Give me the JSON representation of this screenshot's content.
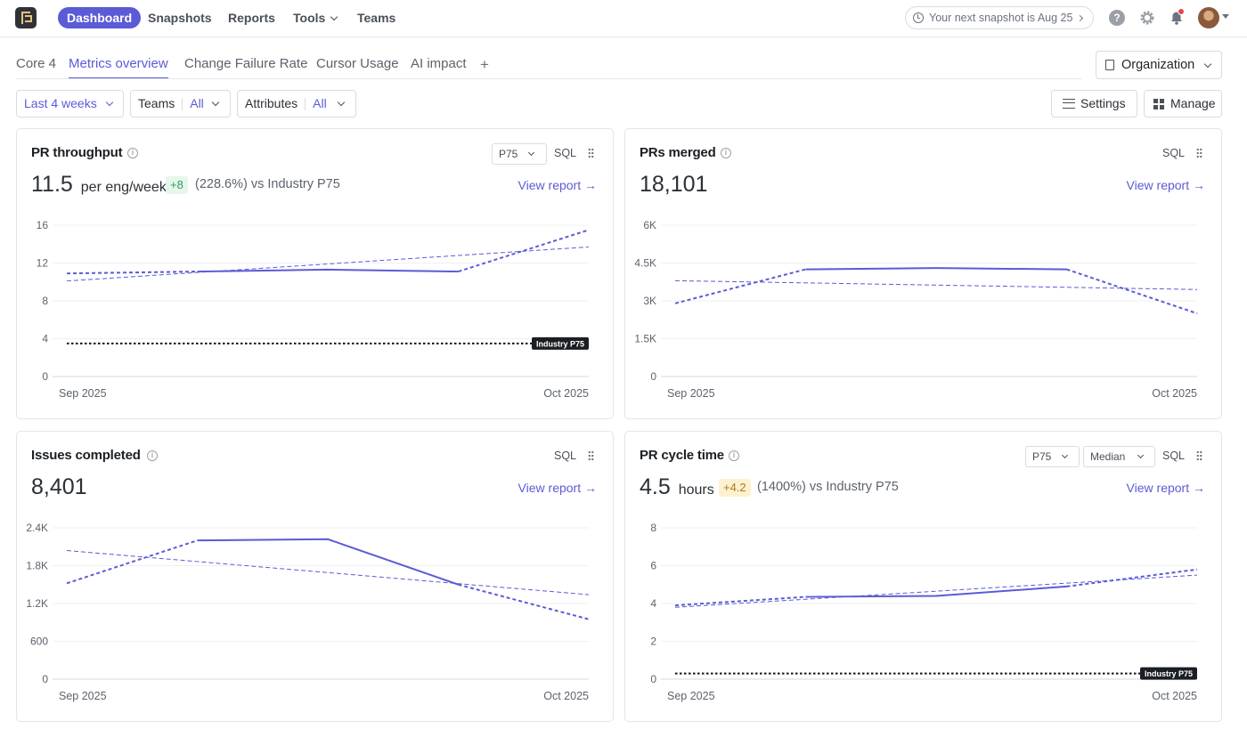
{
  "nav": {
    "items": [
      {
        "label": "Dashboard",
        "active": true
      },
      {
        "label": "Snapshots"
      },
      {
        "label": "Reports"
      },
      {
        "label": "Tools"
      },
      {
        "label": "Teams"
      }
    ],
    "snapshot_text": "Your next snapshot is Aug 25",
    "help_glyph": "?"
  },
  "tabs": [
    "Core 4",
    "Metrics overview",
    "Change Failure Rate",
    "Cursor Usage",
    "AI impact"
  ],
  "active_tab": "Metrics overview",
  "tab_add": "+",
  "organization_label": "Organization",
  "filters": {
    "date_range": "Last 4 weeks",
    "teams_label": "Teams",
    "teams_value": "All",
    "attributes_label": "Attributes",
    "attributes_value": "All"
  },
  "actions": {
    "settings": "Settings",
    "manage": "Manage"
  },
  "colors": {
    "accent": "#5b5bd6",
    "benchmark": "#111111",
    "positive": "#2e9c56",
    "warning": "#b2791d"
  },
  "cards": [
    {
      "title": "PR throughput",
      "select": "P75",
      "sql": "SQL",
      "value": "11.5",
      "unit": "per eng/week",
      "delta": "+8",
      "delta_text": "(228.6%) vs Industry P75",
      "view_report": "View report →"
    },
    {
      "title": "PRs merged",
      "sql": "SQL",
      "value": "18,101",
      "view_report": "View report →"
    },
    {
      "title": "Issues completed",
      "sql": "SQL",
      "value": "8,401",
      "view_report": "View report →"
    },
    {
      "title": "PR cycle time",
      "select": "P75",
      "select2": "Median",
      "sql": "SQL",
      "value": "4.5",
      "unit": "hours",
      "delta": "+4.2",
      "delta_text": "(1400%) vs Industry P75",
      "view_report": "View report →"
    }
  ],
  "chart_data": [
    {
      "type": "line",
      "yticks": [
        "16",
        "12",
        "8",
        "4",
        "0"
      ],
      "ylim": [
        0,
        16
      ],
      "xticks": [
        "Sep 2025",
        "Oct 2025"
      ],
      "series": [
        {
          "values": [
            10.9,
            11.1,
            11.3,
            11.1,
            15.5
          ],
          "style": "solid-with-dashed-ends"
        },
        {
          "values": [
            10.1,
            13.7
          ],
          "style": "trend-dashed"
        },
        {
          "name": "Industry P75",
          "values": [
            3.5,
            3.5
          ],
          "style": "benchmark"
        }
      ]
    },
    {
      "type": "line",
      "yticks": [
        "6K",
        "4.5K",
        "3K",
        "1.5K",
        "0"
      ],
      "ylim": [
        0,
        6000
      ],
      "xticks": [
        "Sep 2025",
        "Oct 2025"
      ],
      "series": [
        {
          "values": [
            2900,
            4250,
            4300,
            4250,
            2500
          ],
          "style": "solid-with-dashed-ends"
        },
        {
          "values": [
            3800,
            3450
          ],
          "style": "trend-dashed"
        }
      ]
    },
    {
      "type": "line",
      "yticks": [
        "2.4K",
        "1.8K",
        "1.2K",
        "600",
        "0"
      ],
      "ylim": [
        0,
        2400
      ],
      "xticks": [
        "Sep 2025",
        "Oct 2025"
      ],
      "series": [
        {
          "values": [
            1520,
            2200,
            2220,
            1500,
            950
          ],
          "style": "solid-with-dashed-ends"
        },
        {
          "values": [
            2040,
            1340
          ],
          "style": "trend-dashed"
        }
      ]
    },
    {
      "type": "line",
      "yticks": [
        "8",
        "6",
        "4",
        "2",
        "0"
      ],
      "ylim": [
        0,
        8
      ],
      "xticks": [
        "Sep 2025",
        "Oct 2025"
      ],
      "series": [
        {
          "values": [
            3.9,
            4.35,
            4.4,
            4.9,
            5.8
          ],
          "style": "solid-with-dashed-ends"
        },
        {
          "values": [
            3.8,
            5.5
          ],
          "style": "trend-dashed"
        },
        {
          "name": "Industry P75",
          "values": [
            0.3,
            0.3
          ],
          "style": "benchmark"
        }
      ]
    }
  ]
}
